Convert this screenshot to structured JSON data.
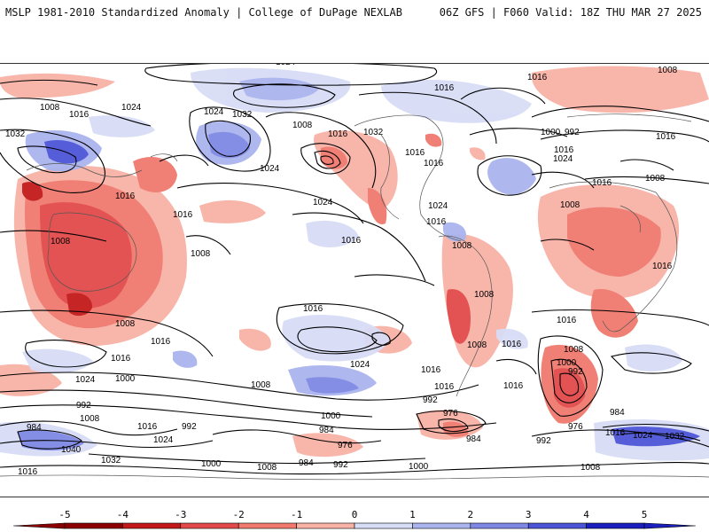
{
  "header": {
    "title_left": "MSLP 1981-2010 Standardized Anomaly | College of DuPage NEXLAB",
    "title_right": "06Z GFS | F060 Valid: 18Z THU MAR 27 2025"
  },
  "colors": {
    "neg5": "#8b0000",
    "neg4": "#c21a1a",
    "neg3": "#e24a4a",
    "neg2": "#f07a6e",
    "neg1": "#f8b2a6",
    "zero": "#ffffff",
    "pos1": "#d8ddf6",
    "pos2": "#aab4ee",
    "pos3": "#7f88e4",
    "pos4": "#4c55d6",
    "pos5": "#1a1fbd",
    "isobar": "#000000",
    "border": "#555555"
  },
  "colorbar": {
    "ticks": [
      "-5",
      "-4",
      "-3",
      "-2",
      "-1",
      "0",
      "1",
      "2",
      "3",
      "4",
      "5"
    ]
  },
  "isobar_labels": [
    "1024",
    "1016",
    "1008",
    "1016",
    "1024",
    "1032",
    "1024",
    "1032",
    "1008",
    "1016",
    "1032",
    "1016",
    "1024",
    "1008",
    "1016",
    "1016",
    "1000",
    "992",
    "1016",
    "1024",
    "1008",
    "1016",
    "1016",
    "1024",
    "1016",
    "1008",
    "1016",
    "1024",
    "1016",
    "1008",
    "1016",
    "1016",
    "1008",
    "1008",
    "1008",
    "1008",
    "1016",
    "1016",
    "1016",
    "1008",
    "1016",
    "1024",
    "1016",
    "1016",
    "1024",
    "1000",
    "1008",
    "992",
    "1016",
    "1008",
    "1000",
    "992",
    "992",
    "976",
    "984",
    "984",
    "1000",
    "1008",
    "1016",
    "992",
    "1040",
    "1032",
    "1024",
    "1000",
    "1008",
    "984",
    "976",
    "992",
    "1000",
    "1008",
    "984",
    "1016",
    "1024",
    "1032",
    "1016",
    "992",
    "984",
    "976",
    "1016"
  ]
}
